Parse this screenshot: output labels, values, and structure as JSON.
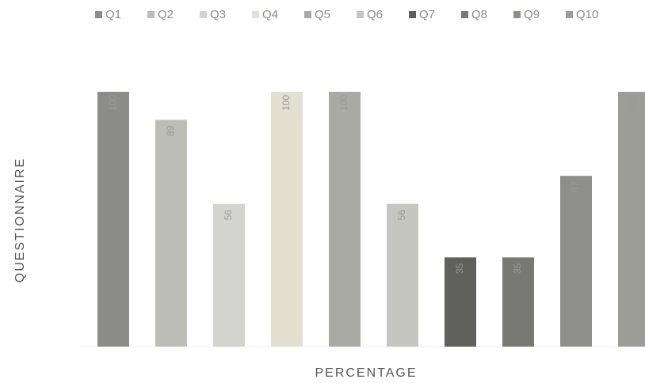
{
  "chart_data": {
    "type": "bar",
    "x_label": "PERCENTAGE",
    "y_label": "QUESTIONNAIRE",
    "categories": [
      "Q1",
      "Q2",
      "Q3",
      "Q4",
      "Q5",
      "Q6",
      "Q7",
      "Q8",
      "Q9",
      "Q10"
    ],
    "values": [
      100,
      89,
      56,
      100,
      100,
      56,
      35,
      35,
      67,
      100
    ],
    "colors": [
      "#8c8c88",
      "#bdbdb8",
      "#d3d3cf",
      "#e3e0d2",
      "#a9aaa3",
      "#c6c6c0",
      "#5f605c",
      "#787975",
      "#8e8f8a",
      "#9c9d97"
    ]
  }
}
